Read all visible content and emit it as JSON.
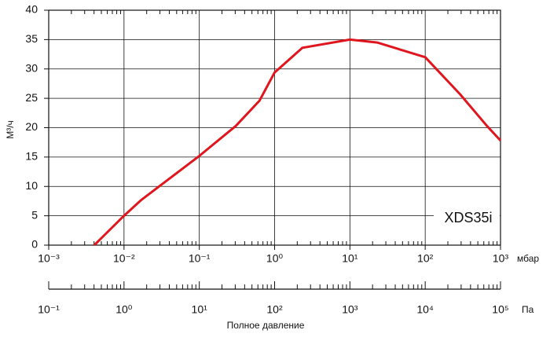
{
  "chart_data": {
    "type": "line",
    "y_label": "М³/ч",
    "x_unit": "мбар",
    "x2_unit": "Па",
    "x2_label": "Полное давление",
    "annotation": "XDS35i",
    "log_x": true,
    "grid": true,
    "x": [
      0.00403,
      0.01,
      0.017,
      0.1,
      0.305,
      0.63,
      1,
      2.34,
      10,
      23,
      100,
      290,
      661,
      1000
    ],
    "series": [
      {
        "color": "#e0161e",
        "values": [
          0,
          5,
          7.7,
          15.2,
          20.3,
          24.6,
          29.4,
          33.6,
          35,
          34.5,
          32,
          25.7,
          20.3,
          17.8
        ]
      }
    ],
    "xlim": [
      0.001,
      1000
    ],
    "xticks": [
      {
        "value": 0.001,
        "label": "10⁻³"
      },
      {
        "value": 0.01,
        "label": "10⁻²"
      },
      {
        "value": 0.1,
        "label": "10⁻¹"
      },
      {
        "value": 1,
        "label": "10⁰"
      },
      {
        "value": 10,
        "label": "10¹"
      },
      {
        "value": 100,
        "label": "10²"
      },
      {
        "value": 1000,
        "label": "10³"
      }
    ],
    "x2lim": [
      0.1,
      100000
    ],
    "x2ticks": [
      {
        "value": 0.1,
        "label": "10⁻¹"
      },
      {
        "value": 1,
        "label": "10⁰"
      },
      {
        "value": 10,
        "label": "10¹"
      },
      {
        "value": 100,
        "label": "10²"
      },
      {
        "value": 1000,
        "label": "10³"
      },
      {
        "value": 10000,
        "label": "10⁴"
      },
      {
        "value": 100000,
        "label": "10⁵"
      }
    ],
    "ylim": [
      0,
      40
    ],
    "yticks": [
      0,
      5,
      10,
      15,
      20,
      25,
      30,
      35,
      40
    ]
  }
}
